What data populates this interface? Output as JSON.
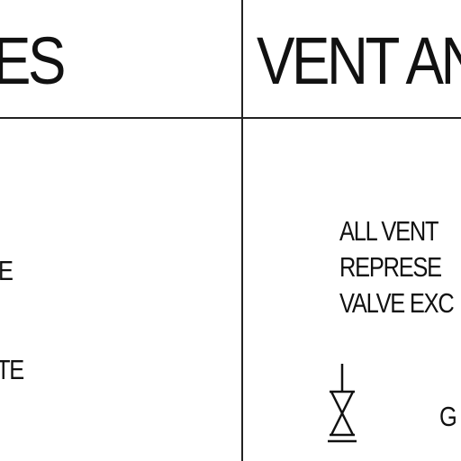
{
  "left_panel": {
    "heading": "ES",
    "fragments": [
      "E",
      "TE"
    ]
  },
  "right_panel": {
    "heading": "VENT AN",
    "note_lines": [
      "ALL VENT",
      "REPRESE",
      "VALVE EXC"
    ],
    "legend": {
      "icon": "gate-valve-icon",
      "label": "G"
    }
  }
}
